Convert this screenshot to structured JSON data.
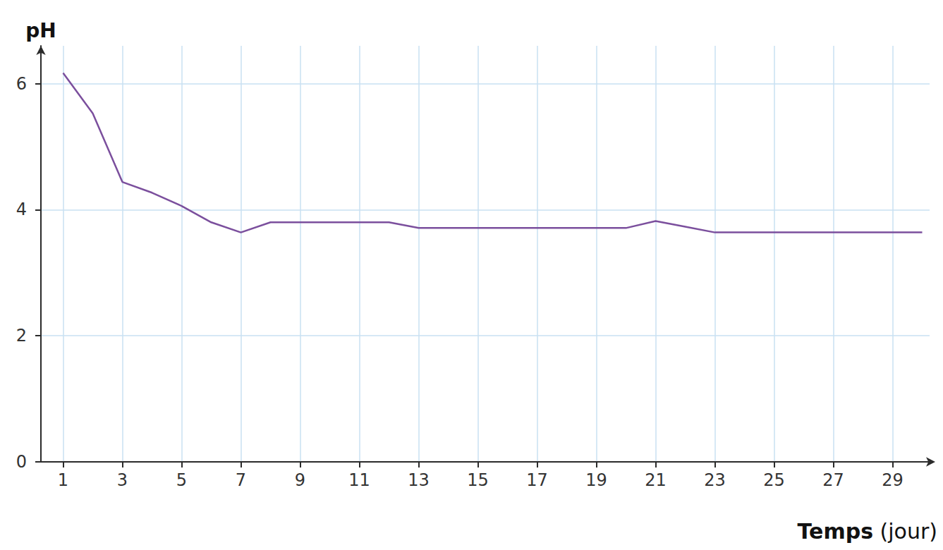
{
  "chart_data": {
    "type": "line",
    "x_label": "Temps (jour)",
    "y_label": "pH",
    "x": [
      1,
      2,
      3,
      4,
      5,
      6,
      7,
      8,
      9,
      10,
      11,
      12,
      13,
      14,
      15,
      16,
      17,
      18,
      19,
      20,
      21,
      22,
      23,
      24,
      25,
      26,
      27,
      28,
      29,
      30
    ],
    "values": [
      6.17,
      5.53,
      4.44,
      4.27,
      4.06,
      3.8,
      3.64,
      3.8,
      3.8,
      3.8,
      3.8,
      3.8,
      3.71,
      3.71,
      3.71,
      3.71,
      3.71,
      3.71,
      3.71,
      3.71,
      3.82,
      3.73,
      3.64,
      3.64,
      3.64,
      3.64,
      3.64,
      3.64,
      3.64,
      3.64
    ],
    "color": "#7b4f9d",
    "marker": "none",
    "xlim": [
      0.25,
      30.25
    ],
    "xticks": [
      1,
      3,
      5,
      7,
      9,
      11,
      13,
      15,
      17,
      19,
      21,
      23,
      25,
      27,
      29
    ],
    "ylim": [
      0,
      6.6
    ],
    "yticks": [
      0,
      2,
      4,
      6
    ],
    "grid": true
  }
}
